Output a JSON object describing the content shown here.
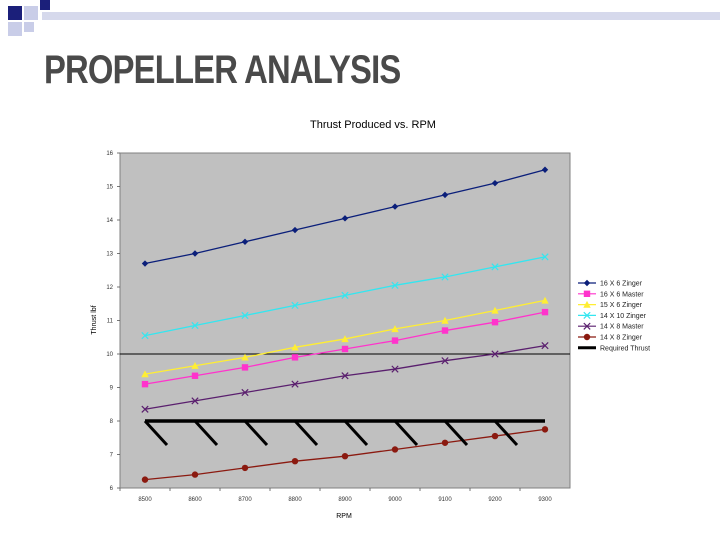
{
  "slide": {
    "title": "PROPELLER ANALYSIS"
  },
  "chart_data": {
    "type": "line",
    "title": "Thrust Produced vs. RPM",
    "xlabel": "RPM",
    "ylabel": "Thrust lbf",
    "categories": [
      "8500",
      "8600",
      "8700",
      "8800",
      "8900",
      "9000",
      "9100",
      "9200",
      "9300"
    ],
    "ylim": [
      6,
      16
    ],
    "yticks": [
      "6",
      "7",
      "8",
      "9",
      "10",
      "11",
      "12",
      "13",
      "14",
      "15",
      "16"
    ],
    "legend_position": "right",
    "series": [
      {
        "name": "16 X 6 Zinger",
        "color": "#0b1f7a",
        "marker": "diamond",
        "values": [
          12.7,
          13.0,
          13.35,
          13.7,
          14.05,
          14.4,
          14.75,
          15.1,
          15.5
        ]
      },
      {
        "name": "16 X 6 Master",
        "color": "#ff33cc",
        "marker": "square",
        "values": [
          9.1,
          9.35,
          9.6,
          9.9,
          10.15,
          10.4,
          10.7,
          10.95,
          11.25
        ]
      },
      {
        "name": "15 X 6 Zinger",
        "color": "#ffee33",
        "marker": "triangle",
        "values": [
          9.4,
          9.65,
          9.9,
          10.2,
          10.45,
          10.75,
          11.0,
          11.3,
          11.6
        ]
      },
      {
        "name": "14 X 10 Zinger",
        "color": "#33e6f0",
        "marker": "x",
        "values": [
          10.55,
          10.85,
          11.15,
          11.45,
          11.75,
          12.05,
          12.3,
          12.6,
          12.9
        ]
      },
      {
        "name": "14 X 8 Master",
        "color": "#5a1f6e",
        "marker": "x",
        "values": [
          8.35,
          8.6,
          8.85,
          9.1,
          9.35,
          9.55,
          9.8,
          10.0,
          10.25
        ]
      },
      {
        "name": "14 X 8 Zinger",
        "color": "#8b1a10",
        "marker": "circle",
        "values": [
          6.25,
          6.4,
          6.6,
          6.8,
          6.95,
          7.15,
          7.35,
          7.55,
          7.75
        ]
      },
      {
        "name": "Required Thrust",
        "color": "#000000",
        "marker": "none",
        "hatched": true,
        "values": [
          8.0,
          8.0,
          8.0,
          8.0,
          8.0,
          8.0,
          8.0,
          8.0,
          8.0
        ]
      }
    ]
  }
}
